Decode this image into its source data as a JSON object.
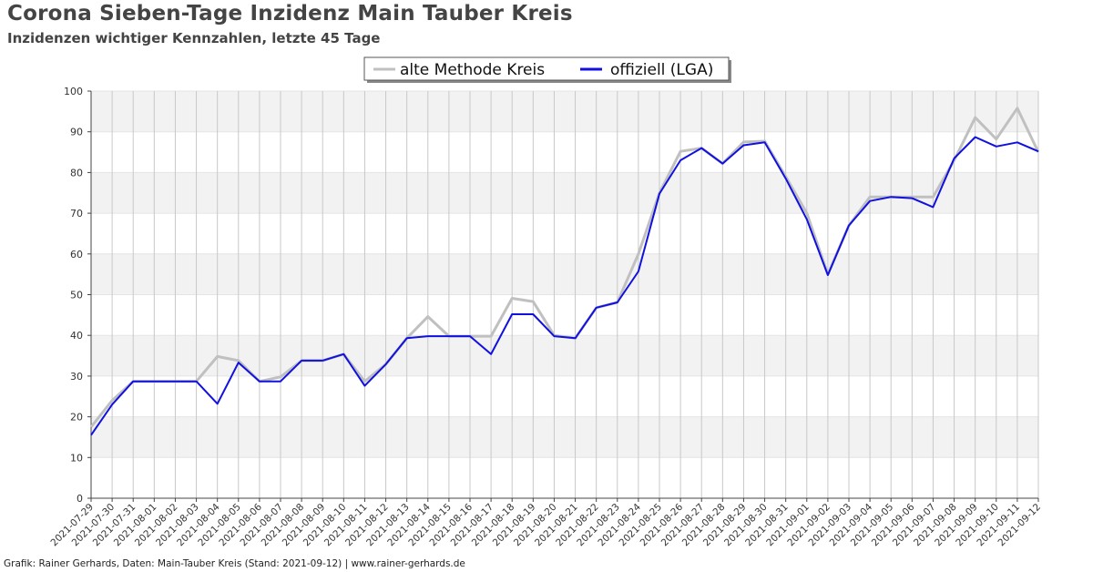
{
  "title": "Corona Sieben-Tage Inzidenz Main Tauber Kreis",
  "subtitle": "Inzidenzen wichtiger Kennzahlen, letzte 45 Tage",
  "footer": "Grafik: Rainer Gerhards, Daten: Main-Tauber Kreis (Stand: 2021-09-12) | www.rainer-gerhards.de",
  "colors": {
    "alte_methode": "#c0c0c0",
    "offiziell": "#1010e0"
  },
  "chart_data": {
    "type": "line",
    "ylim": [
      0,
      100
    ],
    "yticks": [
      0,
      10,
      20,
      30,
      40,
      50,
      60,
      70,
      80,
      90,
      100
    ],
    "grid": true,
    "legend_placement": "top-center",
    "x": [
      "2021-07-29",
      "2021-07-30",
      "2021-07-31",
      "2021-08-01",
      "2021-08-02",
      "2021-08-03",
      "2021-08-04",
      "2021-08-05",
      "2021-08-06",
      "2021-08-07",
      "2021-08-08",
      "2021-08-09",
      "2021-08-10",
      "2021-08-11",
      "2021-08-12",
      "2021-08-13",
      "2021-08-14",
      "2021-08-15",
      "2021-08-16",
      "2021-08-17",
      "2021-08-18",
      "2021-08-19",
      "2021-08-20",
      "2021-08-21",
      "2021-08-22",
      "2021-08-23",
      "2021-08-24",
      "2021-08-25",
      "2021-08-26",
      "2021-08-27",
      "2021-08-28",
      "2021-08-29",
      "2021-08-30",
      "2021-08-31",
      "2021-09-01",
      "2021-09-02",
      "2021-09-03",
      "2021-09-04",
      "2021-09-05",
      "2021-09-06",
      "2021-09-07",
      "2021-09-08",
      "2021-09-09",
      "2021-09-10",
      "2021-09-11",
      "2021-09-12"
    ],
    "series": [
      {
        "name": "alte Methode Kreis",
        "values": [
          17.5,
          24.0,
          28.7,
          28.7,
          28.7,
          28.7,
          34.8,
          33.8,
          28.7,
          29.8,
          33.8,
          33.8,
          35.4,
          28.7,
          32.9,
          39.3,
          44.6,
          39.8,
          39.8,
          39.8,
          49.1,
          48.3,
          40.0,
          39.3,
          46.8,
          48.1,
          60.0,
          75.0,
          85.2,
          86.0,
          82.2,
          87.5,
          87.7,
          79.0,
          70.0,
          55.0,
          67.0,
          74.0,
          74.0,
          74.0,
          74.0,
          83.0,
          93.5,
          88.2,
          95.8,
          85.0
        ]
      },
      {
        "name": "offiziell (LGA)",
        "values": [
          15.5,
          23.0,
          28.7,
          28.7,
          28.7,
          28.7,
          23.2,
          33.3,
          28.7,
          28.7,
          33.8,
          33.8,
          35.4,
          27.6,
          32.9,
          39.3,
          39.8,
          39.8,
          39.8,
          35.4,
          45.2,
          45.2,
          39.8,
          39.3,
          46.8,
          48.1,
          55.7,
          74.8,
          83.0,
          86.0,
          82.2,
          86.7,
          87.4,
          78.5,
          68.5,
          54.8,
          67.0,
          73.0,
          74.0,
          73.7,
          71.5,
          83.5,
          88.7,
          86.4,
          87.4,
          85.2
        ]
      }
    ]
  }
}
